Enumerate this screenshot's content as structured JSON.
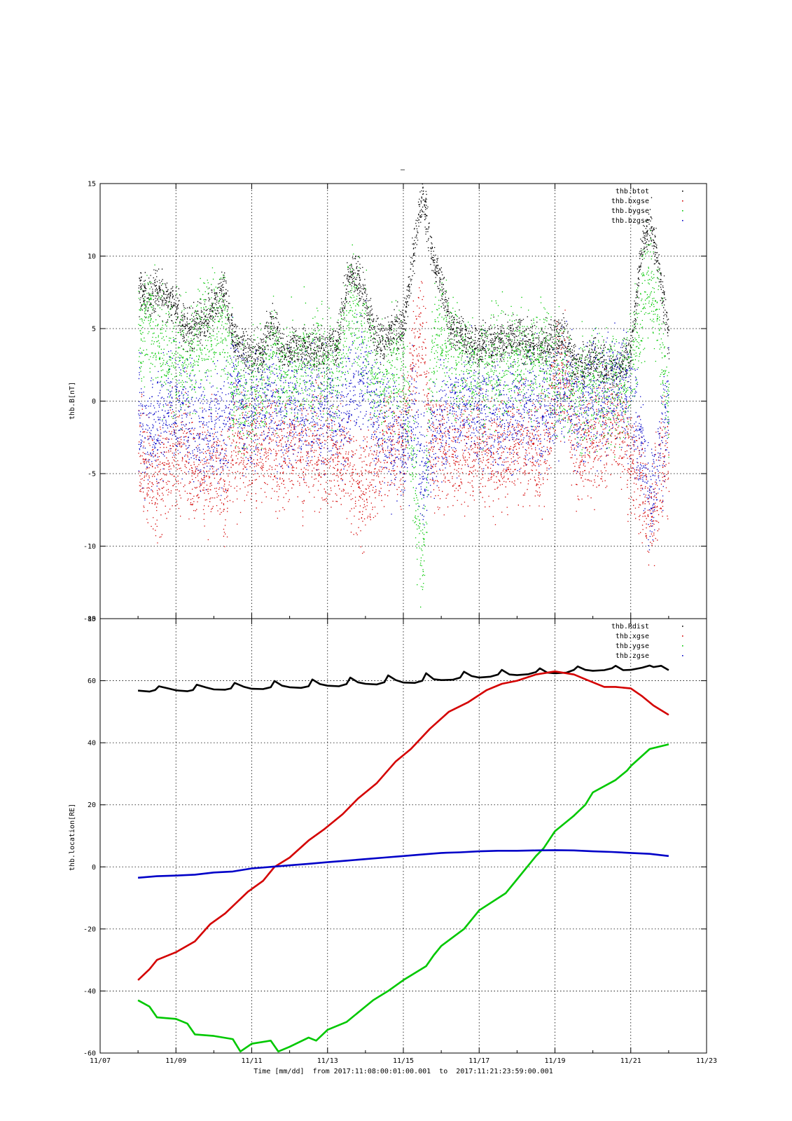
{
  "figure": {
    "title": "–",
    "xlabel": "Time [mm/dd]  from 2017:11:08:00:01:00.001  to  2017:11:21:23:59:00.001"
  },
  "chart_data": [
    {
      "type": "scatter",
      "ylabel": "thb.B[nT]",
      "ylim": [
        -15,
        15
      ],
      "yticks": [
        15,
        10,
        5,
        0,
        -5,
        -10,
        -15
      ],
      "xlim": [
        0,
        16
      ],
      "xtick_labels": [
        "11/07",
        "11/09",
        "11/11",
        "11/13",
        "11/15",
        "11/17",
        "11/19",
        "11/21",
        "11/23"
      ],
      "x_unit": "days since 11/07 00:00",
      "grid": true,
      "legend_position": "top-right",
      "series": [
        {
          "name": "thb.btot",
          "color": "#000000",
          "x": [
            1,
            1.25,
            1.5,
            1.75,
            2,
            2.25,
            2.5,
            2.75,
            3,
            3.25,
            3.5,
            3.75,
            4,
            4.25,
            4.5,
            4.75,
            5,
            5.25,
            5.5,
            5.75,
            6,
            6.25,
            6.5,
            6.75,
            7,
            7.25,
            7.5,
            7.75,
            8,
            8.25,
            8.5,
            8.75,
            9,
            9.25,
            9.5,
            9.75,
            10,
            10.25,
            10.5,
            10.75,
            11,
            11.25,
            11.5,
            11.75,
            12,
            12.25,
            12.5,
            12.75,
            13,
            13.25,
            13.5,
            13.75,
            14,
            14.25,
            14.5,
            14.75,
            15
          ],
          "values": [
            7.5,
            7.2,
            7.8,
            7,
            6.5,
            5,
            5.2,
            5.5,
            6.5,
            7.5,
            4.5,
            3.5,
            3.3,
            3.2,
            5.5,
            3.8,
            3.5,
            3.8,
            3.6,
            3.5,
            3.8,
            3.7,
            8.2,
            9,
            7,
            4.5,
            4,
            5,
            5,
            10,
            14.5,
            10,
            8,
            5,
            4.5,
            4,
            3.8,
            4,
            4,
            4.2,
            4.5,
            4,
            3.8,
            3.9,
            4.2,
            4.5,
            2.5,
            2.2,
            3,
            2.5,
            2,
            2.6,
            3.5,
            10,
            12.5,
            9,
            4
          ]
        },
        {
          "name": "thb.bxgse",
          "color": "#d40000",
          "x": [
            1,
            1.25,
            1.5,
            1.75,
            2,
            2.25,
            2.5,
            2.75,
            3,
            3.25,
            3.5,
            3.75,
            4,
            4.25,
            4.5,
            4.75,
            5,
            5.25,
            5.5,
            5.75,
            6,
            6.25,
            6.5,
            6.75,
            7,
            7.25,
            7.5,
            7.75,
            8,
            8.25,
            8.5,
            8.75,
            9,
            9.25,
            9.5,
            9.75,
            10,
            10.25,
            10.5,
            10.75,
            11,
            11.25,
            11.5,
            11.75,
            12,
            12.25,
            12.5,
            12.75,
            13,
            13.25,
            13.5,
            13.75,
            14,
            14.25,
            14.5,
            14.75,
            15
          ],
          "values": [
            -3,
            -5,
            -5.5,
            -4,
            -3.5,
            -3,
            -4.5,
            -5,
            -4.5,
            -6,
            -3.5,
            -3,
            -3,
            -3,
            -3.5,
            -3.5,
            -3.2,
            -3.3,
            -3,
            -3.2,
            -3.5,
            -3.5,
            -4.5,
            -5.5,
            -6,
            -4,
            -3.5,
            -3,
            -3,
            3,
            5,
            -4,
            -3,
            -3.5,
            -3.5,
            -3.2,
            -3.2,
            -3.5,
            -3.3,
            -3.5,
            -3,
            -3,
            -3.2,
            -3,
            1.5,
            1.8,
            -3,
            -3.2,
            -3,
            -2,
            -1.5,
            -2,
            -4,
            -6,
            -8,
            -5,
            -4
          ]
        },
        {
          "name": "thb.bygse",
          "color": "#00c800",
          "x": [
            1,
            1.25,
            1.5,
            1.75,
            2,
            2.25,
            2.5,
            2.75,
            3,
            3.25,
            3.5,
            3.75,
            4,
            4.25,
            4.5,
            4.75,
            5,
            5.25,
            5.5,
            5.75,
            6,
            6.25,
            6.5,
            6.75,
            7,
            7.25,
            7.5,
            7.75,
            8,
            8.25,
            8.5,
            8.75,
            9,
            9.25,
            9.5,
            9.75,
            10,
            10.25,
            10.5,
            10.75,
            11,
            11.25,
            11.5,
            11.75,
            12,
            12.25,
            12.5,
            12.75,
            13,
            13.25,
            13.5,
            13.75,
            14,
            14.25,
            14.5,
            14.75,
            15
          ],
          "values": [
            4.5,
            5.5,
            4,
            3.5,
            3,
            2.5,
            4,
            4.5,
            5,
            5.5,
            1,
            0,
            0.5,
            0.8,
            3.5,
            2,
            1.5,
            2.5,
            2.2,
            2.8,
            2.5,
            2.3,
            5.5,
            6.5,
            4,
            2,
            1,
            2,
            2,
            -5,
            -11,
            3,
            5,
            3,
            2.5,
            2,
            1.8,
            2.5,
            2.3,
            2.8,
            3,
            2.8,
            3,
            3,
            1.5,
            1.2,
            0.5,
            0.8,
            1,
            1.2,
            0.8,
            1,
            2,
            6,
            9,
            5,
            -1
          ]
        },
        {
          "name": "thb.bzgse",
          "color": "#0000c8",
          "x": [
            1,
            1.25,
            1.5,
            1.75,
            2,
            2.25,
            2.5,
            2.75,
            3,
            3.25,
            3.5,
            3.75,
            4,
            4.25,
            4.5,
            4.75,
            5,
            5.25,
            5.5,
            5.75,
            6,
            6.25,
            6.5,
            6.75,
            7,
            7.25,
            7.5,
            7.75,
            8,
            8.25,
            8.5,
            8.75,
            9,
            9.25,
            9.5,
            9.75,
            10,
            10.25,
            10.5,
            10.75,
            11,
            11.25,
            11.5,
            11.75,
            12,
            12.25,
            12.5,
            12.75,
            13,
            13.25,
            13.5,
            13.75,
            14,
            14.25,
            14.5,
            14.75,
            15
          ],
          "values": [
            -1,
            -2,
            -1.5,
            -1,
            0,
            -0.5,
            -1.5,
            -2,
            -2,
            -2.5,
            1.5,
            -0.5,
            -0.8,
            -0.5,
            0.5,
            -0.8,
            -1,
            -0.8,
            -0.5,
            -0.8,
            -1,
            -1,
            0,
            1,
            2,
            -1,
            -2,
            -2.5,
            -3,
            -1,
            -5,
            -3,
            -1.5,
            -0.5,
            -0.5,
            -0.3,
            -0.5,
            -0.8,
            -1,
            -0.8,
            -0.5,
            -0.3,
            -0.5,
            -0.3,
            0.5,
            0.8,
            -0.5,
            -0.8,
            0.3,
            0.5,
            0.8,
            0.8,
            0,
            -3,
            -7,
            -3,
            -0.5
          ]
        }
      ]
    },
    {
      "type": "line",
      "ylabel": "thb.location[RE]",
      "ylim": [
        -60,
        80
      ],
      "yticks": [
        80,
        60,
        40,
        20,
        0,
        -20,
        -40,
        -60
      ],
      "xlim": [
        0,
        16
      ],
      "xtick_labels": [
        "11/07",
        "11/09",
        "11/11",
        "11/13",
        "11/15",
        "11/17",
        "11/19",
        "11/21",
        "11/23"
      ],
      "x_unit": "days since 11/07 00:00",
      "grid": true,
      "legend_position": "top-right",
      "series": [
        {
          "name": "thb.Rdist",
          "color": "#000000",
          "x": [
            1,
            1.3,
            1.45,
            1.55,
            1.8,
            2,
            2.3,
            2.45,
            2.55,
            2.8,
            3,
            3.3,
            3.45,
            3.55,
            3.8,
            4,
            4.3,
            4.5,
            4.6,
            4.8,
            5,
            5.3,
            5.5,
            5.6,
            5.8,
            6,
            6.3,
            6.5,
            6.6,
            6.8,
            7,
            7.3,
            7.5,
            7.6,
            7.8,
            8,
            8.3,
            8.5,
            8.6,
            8.8,
            9,
            9.3,
            9.5,
            9.6,
            9.8,
            10,
            10.3,
            10.5,
            10.6,
            10.8,
            11,
            11.3,
            11.5,
            11.6,
            11.8,
            12,
            12.3,
            12.5,
            12.6,
            12.8,
            13,
            13.3,
            13.5,
            13.6,
            13.8,
            14,
            14.3,
            14.5,
            14.6,
            14.8,
            15
          ],
          "values": [
            56.8,
            56.5,
            57,
            58.2,
            57.5,
            56.9,
            56.6,
            57,
            58.7,
            57.8,
            57.2,
            57.1,
            57.5,
            59.3,
            58,
            57.4,
            57.3,
            57.9,
            59.9,
            58.4,
            57.9,
            57.7,
            58.2,
            60.4,
            58.9,
            58.4,
            58.2,
            58.9,
            61,
            59.5,
            59,
            58.8,
            59.5,
            61.7,
            60.2,
            59.4,
            59.3,
            60,
            62.4,
            60.5,
            60.2,
            60.3,
            61,
            62.9,
            61.5,
            61,
            61.3,
            62,
            63.5,
            62,
            61.8,
            62.1,
            62.8,
            64,
            62.6,
            62.4,
            62.6,
            63.5,
            64.6,
            63.5,
            63.2,
            63.4,
            64,
            64.8,
            63.4,
            63.5,
            64.2,
            64.9,
            64.4,
            64.8,
            63.4
          ]
        },
        {
          "name": "thb.xgse",
          "color": "#d40000",
          "x": [
            1,
            1.3,
            1.5,
            2,
            2.5,
            2.9,
            3.3,
            3.9,
            4.3,
            4.6,
            5,
            5.5,
            5.9,
            6.4,
            6.8,
            7.3,
            7.8,
            8.2,
            8.7,
            9.2,
            9.7,
            10.2,
            10.6,
            11,
            11.5,
            12,
            12.5,
            12.8,
            13.3,
            13.6,
            14,
            14.3,
            14.6,
            15
          ],
          "values": [
            -36.5,
            -33,
            -30,
            -27.5,
            -24,
            -18.5,
            -15,
            -8,
            -4.5,
            0,
            3,
            8.5,
            12,
            17,
            22,
            27,
            34,
            38,
            44.5,
            50,
            53,
            57,
            59,
            60,
            62,
            63,
            62,
            60.5,
            58,
            58,
            57.5,
            55,
            52,
            49
          ]
        },
        {
          "name": "thb.ygse",
          "color": "#00c800",
          "x": [
            1,
            1.3,
            1.5,
            2,
            2.3,
            2.5,
            3,
            3.5,
            3.7,
            4,
            4.5,
            4.7,
            5,
            5.5,
            5.7,
            6,
            6.5,
            6.9,
            7.2,
            7.6,
            8,
            8.6,
            8.8,
            9,
            9.6,
            10,
            10.7,
            11,
            11.5,
            11.7,
            12,
            12.5,
            12.8,
            13,
            13.6,
            13.9,
            14,
            14.5,
            15
          ],
          "values": [
            -43,
            -45,
            -48.5,
            -49,
            -50.5,
            -54,
            -54.5,
            -55.5,
            -59.5,
            -57,
            -56,
            -59.5,
            -58,
            -55,
            -56,
            -52.5,
            -50,
            -46,
            -43,
            -40,
            -36.5,
            -32,
            -28.5,
            -25.5,
            -20,
            -14,
            -8.5,
            -4,
            3.5,
            6,
            11.5,
            16.5,
            20,
            24,
            28,
            31,
            32.5,
            38,
            39.5
          ]
        },
        {
          "name": "thb.zgse",
          "color": "#0000c8",
          "x": [
            1,
            1.5,
            2,
            2.5,
            3,
            3.5,
            4,
            4.5,
            5,
            5.5,
            6,
            6.5,
            7,
            7.5,
            8,
            8.5,
            9,
            9.5,
            10,
            10.5,
            11,
            11.5,
            12,
            12.5,
            13,
            13.5,
            14,
            14.5,
            15
          ],
          "values": [
            -3.5,
            -3,
            -2.8,
            -2.5,
            -1.8,
            -1.5,
            -0.5,
            0,
            0.5,
            1,
            1.5,
            2,
            2.5,
            3,
            3.5,
            4,
            4.5,
            4.7,
            5,
            5.2,
            5.2,
            5.3,
            5.4,
            5.3,
            5,
            4.8,
            4.5,
            4.2,
            3.5
          ]
        }
      ]
    }
  ]
}
